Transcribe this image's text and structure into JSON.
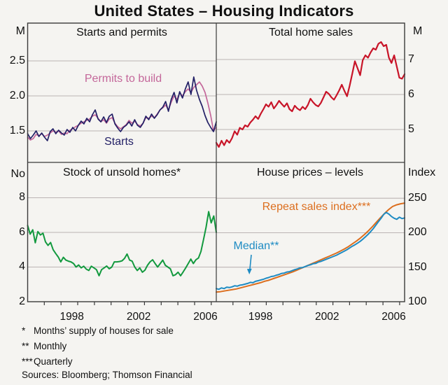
{
  "title": "United States – Housing Indicators",
  "footnotes": [
    {
      "sym": "*",
      "text": "Months’ supply of houses for sale"
    },
    {
      "sym": "**",
      "text": "Monthly"
    },
    {
      "sym": "***",
      "text": "Quarterly"
    }
  ],
  "source": "Sources: Bloomberg; Thomson Financial",
  "palette": {
    "background": "#f5f4f1",
    "frame": "#3a3a3a",
    "grid": "#bcb4b4",
    "text": "#111111"
  },
  "chart_data": [
    {
      "type": "line",
      "title": "Starts and permits",
      "unit": "M",
      "unit_side": "left",
      "ylim": [
        1.05,
        3.04
      ],
      "yticks": [
        {
          "v": 2.5,
          "label": "2.5"
        },
        {
          "v": 2.0,
          "label": "2.0"
        },
        {
          "v": 1.5,
          "label": "1.5"
        }
      ],
      "series": [
        {
          "name": "Permits to build",
          "color": "#c4679a",
          "width": 1.7,
          "values": [
            1.41,
            1.37,
            1.39,
            1.45,
            1.43,
            1.46,
            1.42,
            1.44,
            1.47,
            1.5,
            1.48,
            1.5,
            1.45,
            1.47,
            1.46,
            1.51,
            1.53,
            1.56,
            1.58,
            1.61,
            1.63,
            1.65,
            1.67,
            1.71,
            1.73,
            1.68,
            1.63,
            1.66,
            1.61,
            1.67,
            1.69,
            1.61,
            1.56,
            1.53,
            1.56,
            1.59,
            1.65,
            1.61,
            1.64,
            1.59,
            1.57,
            1.61,
            1.69,
            1.68,
            1.71,
            1.69,
            1.74,
            1.8,
            1.83,
            1.87,
            1.8,
            1.91,
            2.0,
            1.95,
            2.04,
            2.0,
            2.06,
            2.1,
            2.05,
            2.12,
            2.16,
            2.2,
            2.14,
            2.05,
            1.9,
            1.72,
            1.5,
            1.55
          ]
        },
        {
          "name": "Starts",
          "color": "#232066",
          "width": 1.7,
          "values": [
            1.46,
            1.39,
            1.44,
            1.5,
            1.42,
            1.47,
            1.41,
            1.36,
            1.49,
            1.53,
            1.46,
            1.51,
            1.47,
            1.44,
            1.52,
            1.48,
            1.55,
            1.5,
            1.58,
            1.64,
            1.6,
            1.68,
            1.63,
            1.73,
            1.8,
            1.67,
            1.63,
            1.7,
            1.62,
            1.71,
            1.74,
            1.6,
            1.54,
            1.49,
            1.55,
            1.58,
            1.63,
            1.57,
            1.66,
            1.58,
            1.55,
            1.61,
            1.71,
            1.66,
            1.74,
            1.68,
            1.73,
            1.8,
            1.84,
            1.92,
            1.78,
            1.95,
            2.05,
            1.9,
            2.06,
            1.97,
            2.1,
            2.2,
            2.02,
            2.27,
            2.08,
            1.95,
            1.85,
            1.72,
            1.62,
            1.55,
            1.49,
            1.63
          ]
        }
      ],
      "annotations": [
        {
          "text": "Permits to build",
          "color": "#c4679a"
        },
        {
          "text": "Starts",
          "color": "#232066"
        }
      ]
    },
    {
      "type": "line",
      "title": "Total home sales",
      "unit": "M",
      "unit_side": "right",
      "ylim": [
        4.06,
        8.04
      ],
      "yticks": [
        {
          "v": 7,
          "label": "7"
        },
        {
          "v": 6,
          "label": "6"
        },
        {
          "v": 5,
          "label": "5"
        }
      ],
      "series": [
        {
          "name": "Total home sales",
          "color": "#c81428",
          "width": 2.2,
          "values": [
            4.62,
            4.5,
            4.68,
            4.55,
            4.7,
            4.62,
            4.75,
            4.95,
            4.85,
            5.05,
            5.0,
            5.12,
            5.08,
            5.2,
            5.28,
            5.38,
            5.3,
            5.45,
            5.58,
            5.72,
            5.65,
            5.78,
            5.6,
            5.7,
            5.82,
            5.73,
            5.65,
            5.75,
            5.58,
            5.52,
            5.68,
            5.6,
            5.55,
            5.65,
            5.58,
            5.7,
            5.88,
            5.78,
            5.7,
            5.66,
            5.76,
            5.92,
            6.08,
            6.02,
            5.92,
            5.85,
            5.98,
            6.12,
            6.28,
            6.1,
            5.95,
            6.25,
            6.6,
            6.95,
            6.75,
            6.55,
            6.98,
            7.12,
            7.05,
            7.2,
            7.32,
            7.28,
            7.45,
            7.5,
            7.38,
            7.42,
            7.05,
            6.9,
            7.12,
            6.8,
            6.48,
            6.45,
            6.58
          ]
        }
      ],
      "annotations": []
    },
    {
      "type": "line",
      "title": "Stock of unsold homes*",
      "unit": "No",
      "unit_side": "left",
      "ylim": [
        2.0,
        10.04
      ],
      "yticks": [
        {
          "v": 8,
          "label": "8"
        },
        {
          "v": 6,
          "label": "6"
        },
        {
          "v": 4,
          "label": "4"
        },
        {
          "v": 2,
          "label": "2"
        }
      ],
      "xlabels": [
        "1998",
        "2002",
        "2006"
      ],
      "series": [
        {
          "name": "Stock of unsold homes",
          "color": "#12993e",
          "width": 2,
          "values": [
            6.4,
            5.9,
            6.15,
            5.4,
            6.05,
            5.85,
            5.95,
            5.45,
            5.25,
            5.42,
            5.0,
            4.78,
            4.58,
            4.3,
            4.56,
            4.4,
            4.34,
            4.3,
            4.2,
            4.0,
            4.12,
            3.95,
            4.05,
            3.88,
            3.8,
            4.05,
            3.95,
            3.85,
            3.5,
            3.85,
            3.95,
            4.06,
            3.9,
            4.0,
            4.3,
            4.3,
            4.32,
            4.36,
            4.5,
            4.75,
            4.4,
            4.34,
            4.0,
            3.8,
            3.95,
            3.7,
            3.82,
            4.1,
            4.3,
            4.42,
            4.2,
            4.0,
            4.2,
            4.4,
            4.1,
            4.0,
            3.9,
            3.5,
            3.56,
            3.7,
            3.5,
            3.72,
            3.95,
            4.2,
            4.46,
            4.2,
            4.42,
            4.52,
            4.9,
            5.6,
            6.3,
            7.2,
            6.55,
            6.95,
            6.0
          ]
        }
      ],
      "annotations": []
    },
    {
      "type": "line",
      "title": "House prices – levels",
      "unit": "Index",
      "unit_side": "right",
      "ylim": [
        100,
        302
      ],
      "yticks": [
        {
          "v": 250,
          "label": "250"
        },
        {
          "v": 200,
          "label": "200"
        },
        {
          "v": 150,
          "label": "150"
        },
        {
          "v": 100,
          "label": "100"
        }
      ],
      "xlabels": [
        "1998",
        "2002",
        "2006"
      ],
      "series": [
        {
          "name": "Repeat sales index",
          "color": "#dc6e1e",
          "width": 2,
          "values": [
            114,
            114.5,
            115.5,
            116.5,
            117.5,
            118.5,
            120,
            121.5,
            123,
            124.5,
            126,
            127.5,
            129.5,
            131,
            133,
            135,
            137,
            139,
            141,
            143,
            145.5,
            148,
            150.5,
            153,
            155.5,
            158,
            160.5,
            163,
            165.5,
            168,
            170.5,
            173.5,
            176.5,
            180,
            184,
            188,
            192.5,
            197.5,
            203,
            209,
            215.5,
            222,
            228,
            233.5,
            238,
            240.5,
            242,
            243
          ]
        },
        {
          "name": "Median",
          "color": "#1e8bc3",
          "width": 2,
          "values": [
            119,
            118,
            120,
            119,
            121,
            120.5,
            121.5,
            123,
            122.5,
            124,
            124.5,
            125.5,
            126.5,
            128,
            127.5,
            129.5,
            130.5,
            131.5,
            132.5,
            134,
            135,
            136.5,
            137,
            138.5,
            139.5,
            141,
            141.5,
            143,
            143.5,
            145,
            146.5,
            147.5,
            149,
            149.5,
            151,
            152.5,
            153.5,
            155,
            155.5,
            157.5,
            158.5,
            160,
            161.5,
            163,
            164.5,
            166,
            167.5,
            169.5,
            171.5,
            173.5,
            175.5,
            178,
            180.5,
            182.5,
            185,
            187.5,
            190.5,
            194,
            197.5,
            201.5,
            206,
            211,
            216,
            221,
            226.5,
            229.5,
            227,
            223.5,
            221,
            219.5,
            222.5,
            220.5,
            221.5
          ]
        }
      ],
      "annotations": [
        {
          "text": "Repeat sales index***",
          "color": "#dc6e1e"
        },
        {
          "text": "Median**",
          "color": "#1e8bc3"
        }
      ]
    }
  ]
}
